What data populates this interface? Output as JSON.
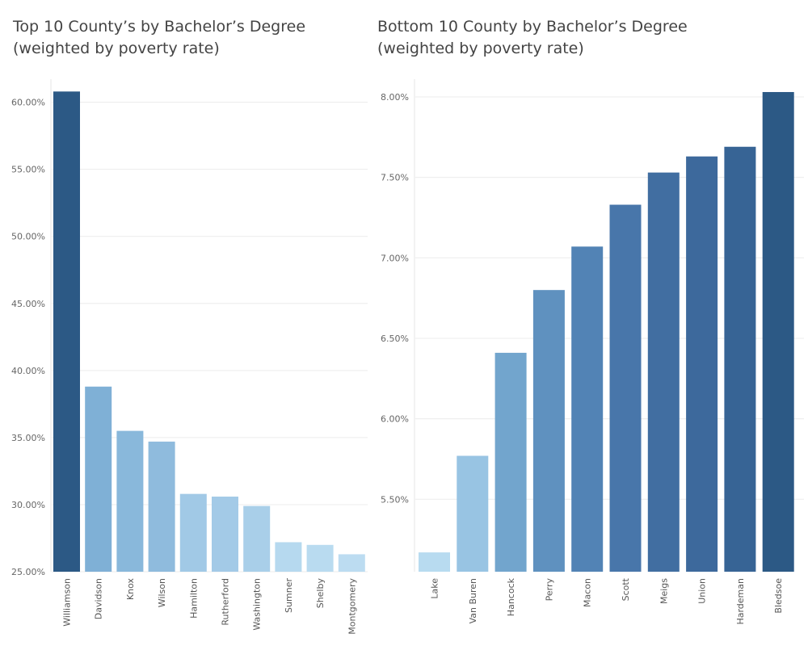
{
  "chart_data": [
    {
      "type": "bar",
      "title_line1": "Top 10 County’s by Bachelor’s Degree",
      "title_line2": "(weighted by poverty rate)",
      "categories": [
        "Williamson",
        "Davidson",
        "Knox",
        "Wilson",
        "Hamilton",
        "Rutherford",
        "Washington",
        "Sumner",
        "Shelby",
        "Montgomery"
      ],
      "values": [
        0.608,
        0.388,
        0.355,
        0.347,
        0.308,
        0.306,
        0.299,
        0.272,
        0.27,
        0.263
      ],
      "colors": [
        "#2c5985",
        "#7fb0d6",
        "#89b8db",
        "#8fbbdd",
        "#a1c9e6",
        "#a3cae7",
        "#a9cfe9",
        "#b6d9ef",
        "#b9dbf0",
        "#bcdcf1"
      ],
      "ylim": [
        0.25,
        0.61
      ],
      "yticks": [
        0.25,
        0.3,
        0.35,
        0.4,
        0.45,
        0.5,
        0.55,
        0.6
      ],
      "ytick_labels": [
        "25.00%",
        "30.00%",
        "35.00%",
        "40.00%",
        "45.00%",
        "50.00%",
        "55.00%",
        "60.00%"
      ],
      "grid": true,
      "xlabel": "",
      "ylabel": ""
    },
    {
      "type": "bar",
      "title_line1": "Bottom 10 County by Bachelor’s Degree",
      "title_line2": "(weighted by poverty rate)",
      "categories": [
        "Lake",
        "Van Buren",
        "Hancock",
        "Perry",
        "Macon",
        "Scott",
        "Meigs",
        "Union",
        "Hardeman",
        "Bledsoe"
      ],
      "values": [
        0.0517,
        0.0577,
        0.0641,
        0.068,
        0.0707,
        0.0733,
        0.0753,
        0.0763,
        0.0769,
        0.0803
      ],
      "colors": [
        "#b8dbf0",
        "#98c4e3",
        "#72a5cd",
        "#5f91bf",
        "#5283b5",
        "#4876aa",
        "#416ea1",
        "#3d699c",
        "#376495",
        "#2c5985"
      ],
      "ylim": [
        0.0505,
        0.0805
      ],
      "yticks": [
        0.055,
        0.06,
        0.065,
        0.07,
        0.075,
        0.08
      ],
      "ytick_labels": [
        "5.50%",
        "6.00%",
        "6.50%",
        "7.00%",
        "7.50%",
        "8.00%"
      ],
      "grid": true,
      "xlabel": "",
      "ylabel": ""
    }
  ]
}
